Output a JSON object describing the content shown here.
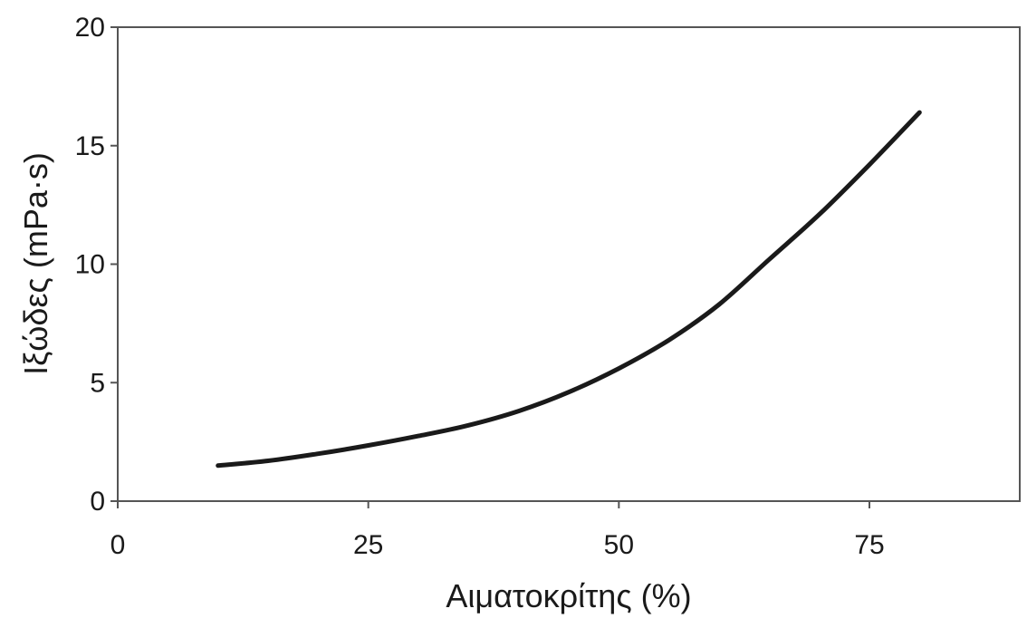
{
  "chart_data": {
    "type": "line",
    "title": "",
    "xlabel": "Αιματοκρίτης (%)",
    "ylabel": "Ιξώδες (mPa·s)",
    "xlim": [
      0,
      90
    ],
    "ylim": [
      0,
      20
    ],
    "xticks": [
      0,
      25,
      50,
      75
    ],
    "yticks": [
      0,
      5,
      10,
      15,
      20
    ],
    "grid": false,
    "legend": "none",
    "series": [
      {
        "color": "#1a1a1a",
        "x": [
          10,
          15,
          20,
          25,
          30,
          35,
          40,
          45,
          50,
          55,
          60,
          65,
          70,
          75,
          80
        ],
        "y": [
          1.5,
          1.7,
          2.0,
          2.35,
          2.75,
          3.2,
          3.8,
          4.6,
          5.6,
          6.8,
          8.3,
          10.2,
          12.1,
          14.2,
          16.4
        ]
      }
    ]
  }
}
